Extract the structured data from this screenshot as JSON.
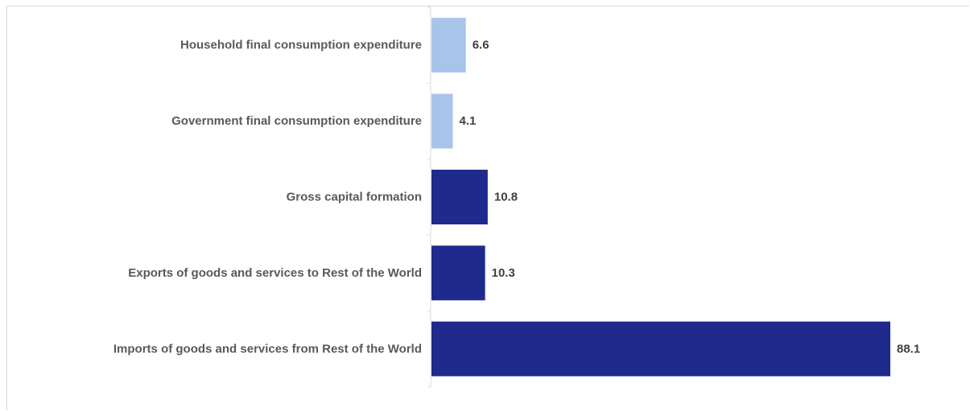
{
  "chart_data": {
    "type": "bar",
    "orientation": "horizontal",
    "categories": [
      "Household final consumption expenditure",
      "Government final consumption expenditure",
      "Gross capital formation",
      "Exports of goods and services to Rest of the World",
      "Imports of goods and services from Rest of the World"
    ],
    "values": [
      6.6,
      4.1,
      10.8,
      10.3,
      88.1
    ],
    "value_labels": [
      "6.6",
      "4.1",
      "10.8",
      "10.3",
      "88.1"
    ],
    "bar_colors": [
      "#a9c4ea",
      "#a9c4ea",
      "#1f2a8c",
      "#1f2a8c",
      "#1f2a8c"
    ],
    "xlim": [
      0,
      100
    ],
    "grid": false,
    "legend": "none",
    "title": "",
    "xlabel": "",
    "ylabel": ""
  }
}
